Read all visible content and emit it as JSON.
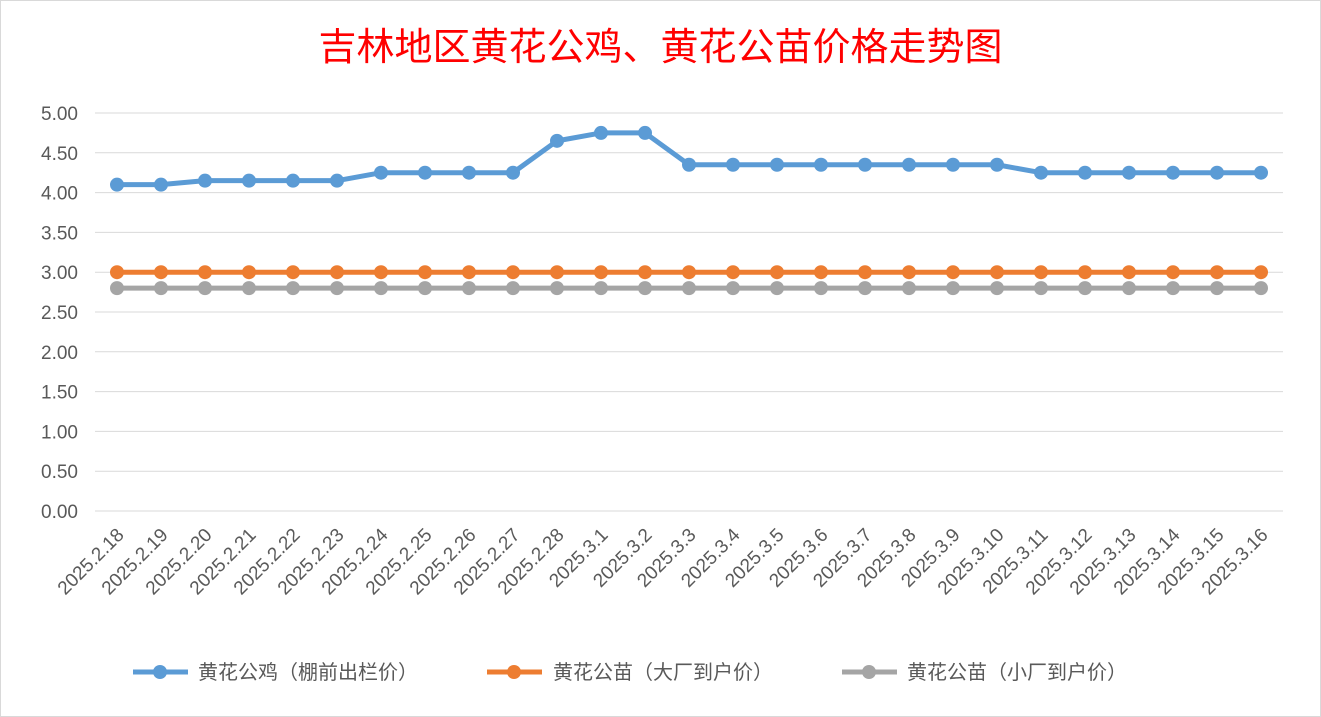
{
  "chart_data": {
    "type": "line",
    "title": "吉林地区黄花公鸡、黄花公苗价格走势图",
    "xlabel": "",
    "ylabel": "",
    "ylim": [
      0,
      5
    ],
    "yticks": [
      "0.00",
      "0.50",
      "1.00",
      "1.50",
      "2.00",
      "2.50",
      "3.00",
      "3.50",
      "4.00",
      "4.50",
      "5.00"
    ],
    "grid": true,
    "legend_position": "bottom",
    "categories": [
      "2025.2.18",
      "2025.2.19",
      "2025.2.20",
      "2025.2.21",
      "2025.2.22",
      "2025.2.23",
      "2025.2.24",
      "2025.2.25",
      "2025.2.26",
      "2025.2.27",
      "2025.2.28",
      "2025.3.1",
      "2025.3.2",
      "2025.3.3",
      "2025.3.4",
      "2025.3.5",
      "2025.3.6",
      "2025.3.7",
      "2025.3.8",
      "2025.3.9",
      "2025.3.10",
      "2025.3.11",
      "2025.3.12",
      "2025.3.13",
      "2025.3.14",
      "2025.3.15",
      "2025.3.16"
    ],
    "series": [
      {
        "name": "黄花公鸡（棚前出栏价）",
        "color": "#5b9bd5",
        "values": [
          4.1,
          4.1,
          4.15,
          4.15,
          4.15,
          4.15,
          4.25,
          4.25,
          4.25,
          4.25,
          4.65,
          4.75,
          4.75,
          4.35,
          4.35,
          4.35,
          4.35,
          4.35,
          4.35,
          4.35,
          4.35,
          4.25,
          4.25,
          4.25,
          4.25,
          4.25,
          4.25
        ]
      },
      {
        "name": "黄花公苗（大厂到户价）",
        "color": "#ed7d31",
        "values": [
          3,
          3,
          3,
          3,
          3,
          3,
          3,
          3,
          3,
          3,
          3,
          3,
          3,
          3,
          3,
          3,
          3,
          3,
          3,
          3,
          3,
          3,
          3,
          3,
          3,
          3,
          3
        ]
      },
      {
        "name": "黄花公苗（小厂到户价）",
        "color": "#a5a5a5",
        "values": [
          2.8,
          2.8,
          2.8,
          2.8,
          2.8,
          2.8,
          2.8,
          2.8,
          2.8,
          2.8,
          2.8,
          2.8,
          2.8,
          2.8,
          2.8,
          2.8,
          2.8,
          2.8,
          2.8,
          2.8,
          2.8,
          2.8,
          2.8,
          2.8,
          2.8,
          2.8,
          2.8
        ]
      }
    ],
    "gridline_color": "#d9d9d9"
  }
}
